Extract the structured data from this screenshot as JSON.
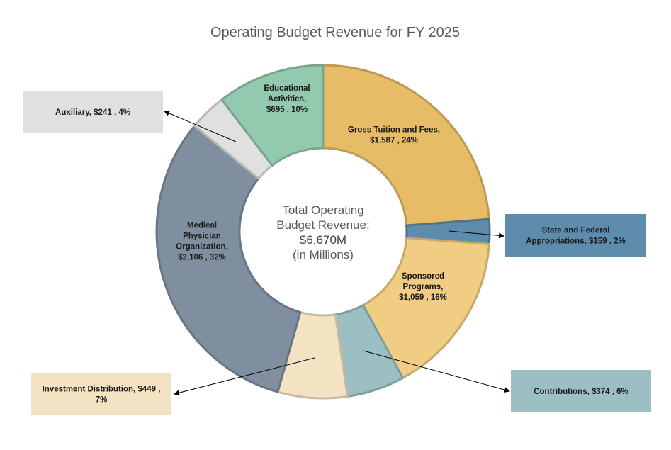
{
  "chart_data": {
    "type": "pie",
    "title": "Operating Budget Revenue for FY 2025",
    "center_text": {
      "line1": "Total Operating",
      "line2": "Budget Revenue:",
      "line3": "$6,670M",
      "line4": "(in Millions)"
    },
    "total": 6670,
    "slices": [
      {
        "name": "Gross Tuition and Fees",
        "value": 1587,
        "percent": 24,
        "color": "#E6BC66",
        "label_lines": [
          "Gross Tuition and Fees,",
          "$1,587 , 24%"
        ]
      },
      {
        "name": "State and Federal Appropriations",
        "value": 159,
        "percent": 2,
        "color": "#5E8CAD",
        "label_lines": [
          "State and Federal",
          "Appropriations,  $159 , 2%"
        ]
      },
      {
        "name": "Sponsored Programs",
        "value": 1059,
        "percent": 16,
        "color": "#F0CD82",
        "label_lines": [
          "Sponsored",
          "Programs,",
          "$1,059 , 16%"
        ]
      },
      {
        "name": "Contributions",
        "value": 374,
        "percent": 6,
        "color": "#9BBFC2",
        "label_lines": [
          "Contributions,  $374 , 6%"
        ]
      },
      {
        "name": "Investment Distribution",
        "value": 449,
        "percent": 7,
        "color": "#F3E3C3",
        "label_lines": [
          "Investment Distribution,  $449 ,",
          "7%"
        ]
      },
      {
        "name": "Medical Physician Organization",
        "value": 2106,
        "percent": 32,
        "color": "#7F8F9F",
        "label_lines": [
          "Medical",
          "Physician",
          "Organization,",
          "$2,106 , 32%"
        ]
      },
      {
        "name": "Auxiliary",
        "value": 241,
        "percent": 4,
        "color": "#E0E0E0",
        "label_lines": [
          "Auxiliary,  $241 , 4%"
        ]
      },
      {
        "name": "Educational Activities",
        "value": 695,
        "percent": 10,
        "color": "#93C9AE",
        "label_lines": [
          "Educational",
          "Activities,",
          "$695 , 10%"
        ]
      }
    ]
  }
}
